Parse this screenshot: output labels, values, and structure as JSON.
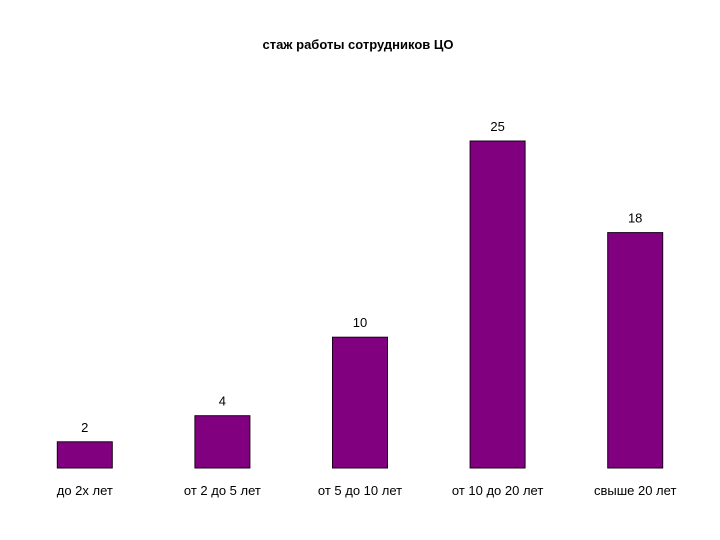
{
  "chart_data": {
    "type": "bar",
    "title": "стаж работы сотрудников ЦО",
    "xlabel": "",
    "ylabel": "",
    "categories": [
      "до 2х лет",
      "от 2 до 5 лет",
      "от 5 до 10 лет",
      "от 10 до 20 лет",
      "свыше 20 лет"
    ],
    "values": [
      2,
      4,
      10,
      25,
      18
    ],
    "ylim": [
      0,
      25
    ],
    "grid": false,
    "legend": "none",
    "bar_color": "#800080",
    "bar_edge_color": "#1a001a"
  }
}
